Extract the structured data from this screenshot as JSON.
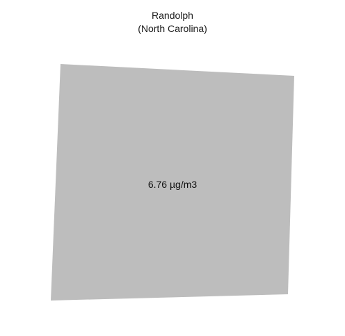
{
  "map": {
    "title": "Randolph",
    "subtitle": "(North Carolina)",
    "region": {
      "name": "Randolph",
      "state": "North Carolina",
      "value_label": "6.76 µg/m3",
      "fill_color": "#bdbdbd"
    },
    "background_color": "#ffffff"
  }
}
